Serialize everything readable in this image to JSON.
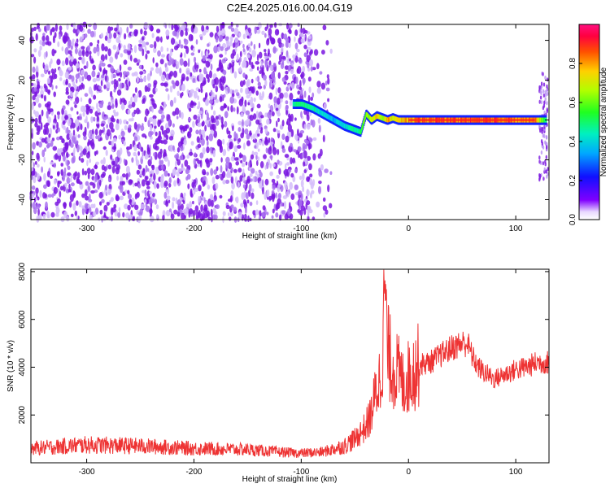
{
  "title": "C2E4.2025.016.00.04.G19",
  "chart_data": [
    {
      "type": "heatmap",
      "xlabel": "Height of straight line (km)",
      "ylabel": "Frequency (Hz)",
      "xlim": [
        -352,
        131
      ],
      "ylim": [
        -50,
        48
      ],
      "xticks": [
        -300,
        -200,
        -100,
        0,
        100
      ],
      "yticks": [
        -40,
        -20,
        0,
        20,
        40
      ],
      "colorbar": {
        "label": "Normalized spectral amplitude",
        "range": [
          0.0,
          1.0
        ],
        "ticks": [
          0.0,
          0.2,
          0.4,
          0.6,
          0.8
        ],
        "colormap": "rainbow"
      },
      "noise_region": {
        "x_range": [
          -352,
          -90
        ],
        "amplitude": 0.15
      },
      "signal_trace": {
        "x": [
          -108,
          -100,
          -90,
          -80,
          -70,
          -60,
          -50,
          -45,
          -40,
          -35,
          -30,
          -25,
          -20,
          -15,
          -10,
          0,
          20,
          40,
          60,
          80,
          100,
          118,
          128
        ],
        "y": [
          8,
          8,
          6,
          3,
          0,
          -3,
          -5,
          -6,
          3,
          0,
          2,
          1,
          0,
          1,
          0,
          0,
          0,
          0,
          0,
          0,
          0,
          0,
          0
        ],
        "amplitude": [
          0.5,
          0.55,
          0.5,
          0.45,
          0.4,
          0.45,
          0.5,
          0.55,
          0.7,
          0.75,
          0.85,
          0.75,
          0.85,
          0.8,
          0.8,
          0.9,
          0.95,
          0.95,
          0.95,
          0.95,
          0.95,
          0.9,
          0.5
        ]
      },
      "colors": {
        "noise": "#7a16e0",
        "trace": "#ff2020"
      }
    },
    {
      "type": "line",
      "xlabel": "Height of straight line (km)",
      "ylabel": "SNR (10 * v/v)",
      "xlim": [
        -352,
        131
      ],
      "ylim": [
        0,
        8100
      ],
      "xticks": [
        -300,
        -200,
        -100,
        0,
        100
      ],
      "yticks": [
        2000,
        4000,
        6000,
        8000
      ],
      "series": [
        {
          "x": [
            -352,
            -300,
            -250,
            -200,
            -150,
            -120,
            -100,
            -80,
            -60,
            -50,
            -40,
            -35,
            -30,
            -25,
            -22,
            -20,
            -15,
            -10,
            -5,
            0,
            10,
            20,
            30,
            40,
            50,
            55,
            60,
            65,
            70,
            80,
            90,
            100,
            110,
            120,
            131
          ],
          "y": [
            600,
            750,
            700,
            600,
            550,
            450,
            400,
            450,
            700,
            1000,
            1500,
            2000,
            3000,
            3800,
            7800,
            4800,
            4000,
            3800,
            3300,
            3600,
            4100,
            4200,
            4500,
            4800,
            5000,
            5000,
            4400,
            4000,
            3800,
            3500,
            3700,
            3900,
            4000,
            4200,
            4200
          ],
          "color": "#ee3333"
        }
      ]
    }
  ]
}
